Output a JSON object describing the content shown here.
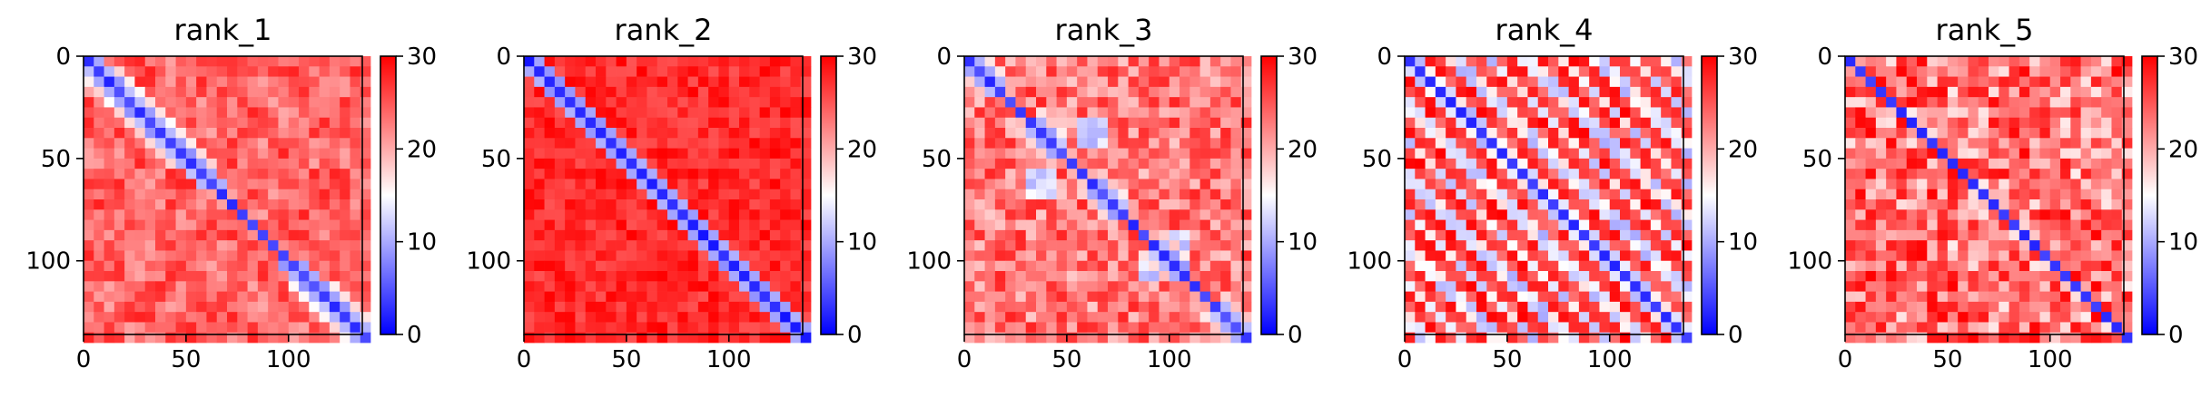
{
  "chart_data": [
    {
      "type": "heatmap",
      "title": "rank_1",
      "matrix_size": 136,
      "xticks": [
        "0",
        "50",
        "100"
      ],
      "yticks": [
        "0",
        "50",
        "100"
      ],
      "colorbar": {
        "range": [
          0,
          30
        ],
        "ticks": [
          "0",
          "10",
          "20",
          "30"
        ],
        "colors": [
          "#0000ff",
          "#ffffff",
          "#ff0000"
        ]
      },
      "pattern": "broad diagonal band with blocky off-diagonal structure"
    },
    {
      "type": "heatmap",
      "title": "rank_2",
      "matrix_size": 136,
      "xticks": [
        "0",
        "50",
        "100"
      ],
      "yticks": [
        "0",
        "50",
        "100"
      ],
      "colorbar": {
        "range": [
          0,
          30
        ],
        "ticks": [
          "0",
          "10",
          "20",
          "30"
        ],
        "colors": [
          "#0000ff",
          "#ffffff",
          "#ff0000"
        ]
      },
      "pattern": "narrow diagonal band, mostly red elsewhere"
    },
    {
      "type": "heatmap",
      "title": "rank_3",
      "matrix_size": 136,
      "xticks": [
        "0",
        "50",
        "100"
      ],
      "yticks": [
        "0",
        "50",
        "100"
      ],
      "colorbar": {
        "range": [
          0,
          30
        ],
        "ticks": [
          "0",
          "10",
          "20",
          "30"
        ],
        "colors": [
          "#0000ff",
          "#ffffff",
          "#ff0000"
        ]
      },
      "pattern": "segmented diagonal blobs with pale off-diagonal patches"
    },
    {
      "type": "heatmap",
      "title": "rank_4",
      "matrix_size": 136,
      "xticks": [
        "0",
        "50",
        "100"
      ],
      "yticks": [
        "0",
        "50",
        "100"
      ],
      "colorbar": {
        "range": [
          0,
          30
        ],
        "ticks": [
          "0",
          "10",
          "20",
          "30"
        ],
        "colors": [
          "#0000ff",
          "#ffffff",
          "#ff0000"
        ]
      },
      "pattern": "diagonal band with repeating parallel stripes"
    },
    {
      "type": "heatmap",
      "title": "rank_5",
      "matrix_size": 136,
      "xticks": [
        "0",
        "50",
        "100"
      ],
      "yticks": [
        "0",
        "50",
        "100"
      ],
      "colorbar": {
        "range": [
          0,
          30
        ],
        "ticks": [
          "0",
          "10",
          "20",
          "30"
        ],
        "colors": [
          "#0000ff",
          "#ffffff",
          "#ff0000"
        ]
      },
      "pattern": "thin diagonal band with pale off-diagonal mottling"
    }
  ]
}
